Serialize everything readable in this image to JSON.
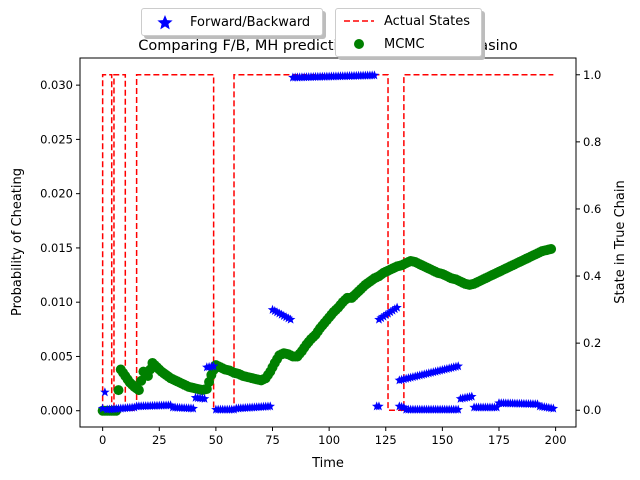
{
  "chart_data": {
    "type": "scatter",
    "title": "Comparing F/B, MH predictions for Dishonest Casino",
    "xlabel": "Time",
    "ylabel_left": "Probability of Cheating",
    "ylabel_right": "State in True Chain",
    "xlim": [
      -10,
      209
    ],
    "ylim_left": [
      -0.0015,
      0.0325
    ],
    "ylim_right": [
      -0.05,
      1.05
    ],
    "x_ticks": [
      "0",
      "25",
      "50",
      "75",
      "100",
      "125",
      "150",
      "175",
      "200"
    ],
    "y_left_ticks": [
      "0.000",
      "0.005",
      "0.010",
      "0.015",
      "0.020",
      "0.025",
      "0.030"
    ],
    "y_right_ticks": [
      "0.0",
      "0.2",
      "0.4",
      "0.6",
      "0.8",
      "1.0"
    ],
    "grid": false,
    "series": [
      {
        "name": "Forward/Backward",
        "marker": "star",
        "color": "#0000ff",
        "axis": "left",
        "segments": [
          {
            "x0": 0,
            "x1": 0,
            "y0": 0.0002,
            "y1": 0.0002
          },
          {
            "x0": 1,
            "x1": 1,
            "y0": 0.0017,
            "y1": 0.0017
          },
          {
            "x0": 2,
            "x1": 14,
            "y0": 0.0001,
            "y1": 0.0003
          },
          {
            "x0": 15,
            "x1": 30,
            "y0": 0.0004,
            "y1": 0.0005
          },
          {
            "x0": 31,
            "x1": 40,
            "y0": 0.0003,
            "y1": 0.0002
          },
          {
            "x0": 41,
            "x1": 45,
            "y0": 0.0012,
            "y1": 0.0011
          },
          {
            "x0": 46,
            "x1": 49,
            "y0": 0.004,
            "y1": 0.0041
          },
          {
            "x0": 50,
            "x1": 58,
            "y0": 0.0001,
            "y1": 0.0001
          },
          {
            "x0": 59,
            "x1": 74,
            "y0": 0.0002,
            "y1": 0.0004
          },
          {
            "x0": 75,
            "x1": 83,
            "y0": 0.0093,
            "y1": 0.0084
          },
          {
            "x0": 84,
            "x1": 120,
            "y0": 0.0307,
            "y1": 0.0309
          },
          {
            "x0": 121,
            "x1": 122,
            "y0": 0.0004,
            "y1": 0.0004
          },
          {
            "x0": 122,
            "x1": 130,
            "y0": 0.0084,
            "y1": 0.0095
          },
          {
            "x0": 131,
            "x1": 133,
            "y0": 0.0004,
            "y1": 0.0003
          },
          {
            "x0": 131,
            "x1": 157,
            "y0": 0.0028,
            "y1": 0.0041
          },
          {
            "x0": 134,
            "x1": 157,
            "y0": 0.0001,
            "y1": 0.0001
          },
          {
            "x0": 158,
            "x1": 163,
            "y0": 0.0011,
            "y1": 0.0013
          },
          {
            "x0": 164,
            "x1": 174,
            "y0": 0.0003,
            "y1": 0.0003
          },
          {
            "x0": 175,
            "x1": 192,
            "y0": 0.0007,
            "y1": 0.0006
          },
          {
            "x0": 193,
            "x1": 199,
            "y0": 0.0004,
            "y1": 0.0002
          }
        ]
      },
      {
        "name": "Actual States",
        "style": "dashed",
        "color": "#ff0000",
        "axis": "right",
        "x": [
          0,
          0,
          4,
          4,
          5,
          5,
          10,
          10,
          15,
          15,
          49,
          49,
          58,
          58,
          126,
          126,
          133,
          133,
          199
        ],
        "y": [
          0,
          1,
          1,
          0,
          0,
          1,
          1,
          0,
          0,
          1,
          1,
          0,
          0,
          1,
          1,
          0,
          0,
          1,
          1
        ]
      },
      {
        "name": "MCMC",
        "marker": "circle",
        "color": "#008000",
        "axis": "left",
        "x": [
          0,
          2,
          4,
          6,
          8,
          10,
          12,
          14,
          16,
          18,
          20,
          22,
          24,
          26,
          28,
          30,
          32,
          34,
          36,
          38,
          40,
          42,
          44,
          46,
          48,
          50,
          52,
          54,
          56,
          58,
          60,
          62,
          64,
          66,
          68,
          70,
          72,
          74,
          76,
          78,
          80,
          82,
          84,
          86,
          88,
          90,
          92,
          94,
          96,
          98,
          100,
          102,
          104,
          106,
          108,
          110,
          112,
          114,
          116,
          118,
          120,
          122,
          124,
          126,
          128,
          130,
          132,
          134,
          136,
          138,
          140,
          142,
          144,
          146,
          148,
          150,
          152,
          154,
          156,
          158,
          160,
          162,
          164,
          166,
          168,
          170,
          172,
          174,
          176,
          178,
          180,
          182,
          184,
          186,
          188,
          190,
          192,
          194,
          196,
          198
        ],
        "y": [
          0.0,
          0.0,
          0.0,
          0.0,
          0.0038,
          0.0032,
          0.0026,
          0.0022,
          0.0019,
          0.0036,
          0.0032,
          0.0044,
          0.004,
          0.0036,
          0.0033,
          0.003,
          0.0028,
          0.0026,
          0.0024,
          0.0022,
          0.0021,
          0.002,
          0.0019,
          0.002,
          0.0033,
          0.0042,
          0.004,
          0.0038,
          0.0037,
          0.0035,
          0.0034,
          0.0032,
          0.0031,
          0.003,
          0.0029,
          0.0028,
          0.003,
          0.0036,
          0.0044,
          0.0051,
          0.0053,
          0.0052,
          0.005,
          0.005,
          0.0055,
          0.0061,
          0.0066,
          0.007,
          0.0076,
          0.0081,
          0.0086,
          0.0091,
          0.0095,
          0.01,
          0.0104,
          0.0104,
          0.0108,
          0.0112,
          0.0116,
          0.0119,
          0.0122,
          0.0124,
          0.0127,
          0.0129,
          0.0131,
          0.0133,
          0.0134,
          0.0136,
          0.0138,
          0.0137,
          0.0135,
          0.0133,
          0.0131,
          0.0129,
          0.0127,
          0.0126,
          0.0124,
          0.0122,
          0.0121,
          0.0119,
          0.0117,
          0.0116,
          0.0117,
          0.0119,
          0.0121,
          0.0123,
          0.0125,
          0.0127,
          0.0129,
          0.0131,
          0.0133,
          0.0135,
          0.0137,
          0.0139,
          0.0141,
          0.0143,
          0.0145,
          0.0147,
          0.0148,
          0.0149
        ]
      }
    ],
    "legend": {
      "placement": "above-plot",
      "entries": [
        "Forward/Backward",
        "Actual States",
        "MCMC"
      ]
    }
  }
}
